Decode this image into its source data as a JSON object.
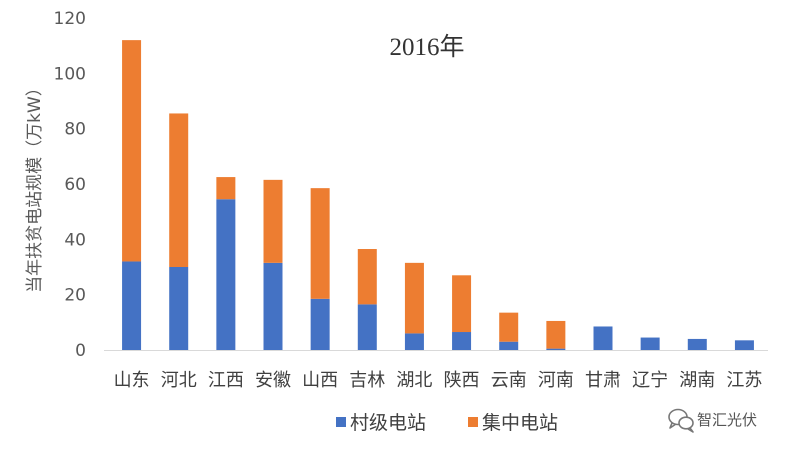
{
  "watermark": {
    "text": "智汇光伏",
    "icon": "wechat-chat-bubbles-icon"
  },
  "chart_data": {
    "type": "bar",
    "stacked": true,
    "title": "2016年",
    "ylabel": "当年扶贫电站规模（万kW）",
    "xlabel": "",
    "ylim": [
      0,
      120
    ],
    "yticks": [
      0,
      20,
      40,
      60,
      80,
      100,
      120
    ],
    "grid": false,
    "legend_position": "bottom",
    "categories": [
      "山东",
      "河北",
      "江西",
      "安徽",
      "山西",
      "吉林",
      "湖北",
      "陕西",
      "云南",
      "河南",
      "甘肃",
      "辽宁",
      "湖南",
      "江苏"
    ],
    "series": [
      {
        "name": "村级电站",
        "color": "#4472C4",
        "values": [
          32,
          30,
          54.5,
          31.5,
          18.5,
          16.5,
          6,
          6.5,
          3,
          0.5,
          8.5,
          4.5,
          4,
          3.5
        ]
      },
      {
        "name": "集中电站",
        "color": "#ED7D31",
        "values": [
          80,
          55.5,
          8,
          30,
          40,
          20,
          25.5,
          20.5,
          10.5,
          10,
          0,
          0,
          0,
          0
        ]
      }
    ]
  }
}
